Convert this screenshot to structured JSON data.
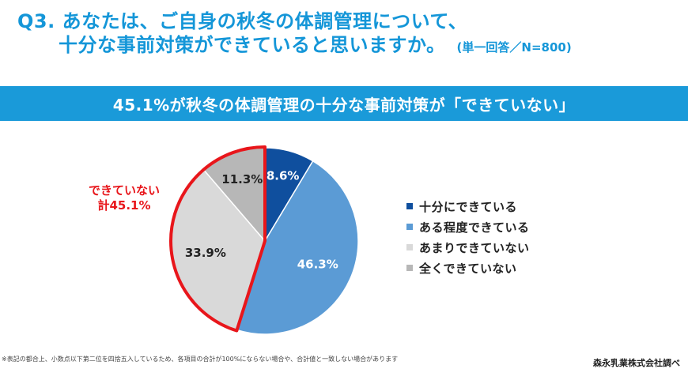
{
  "header": {
    "question_line1": "Q3. あなたは、ご自身の秋冬の体調管理について、",
    "question_line2": "十分な事前対策ができていると思いますか。",
    "sample_note": "(単一回答／N=800)"
  },
  "banner": {
    "text": "45.1%が秋冬の体調管理の十分な事前対策が「できていない」"
  },
  "callout": {
    "line1": "できていない",
    "line2": "計45.1%",
    "color": "#e8161b"
  },
  "footnote": "※表記の都合上、小数点以下第二位を四捨五入しているため、各項目の合計が100%にならない場合や、合計値と一致しない場合があります",
  "source": "森永乳業株式会社調べ",
  "chart_data": {
    "type": "pie",
    "title": "",
    "slices": [
      {
        "label": "十分にできている",
        "value": 8.6,
        "display": "8.6%",
        "color": "#0f4f9e",
        "text_color": "#ffffff"
      },
      {
        "label": "ある程度できている",
        "value": 46.3,
        "display": "46.3%",
        "color": "#5b9bd5",
        "text_color": "#ffffff"
      },
      {
        "label": "あまりできていない",
        "value": 33.9,
        "display": "33.9%",
        "color": "#d9d9d9",
        "text_color": "#222222"
      },
      {
        "label": "全くできていない",
        "value": 11.3,
        "display": "11.3%",
        "color": "#b7b7b7",
        "text_color": "#222222"
      }
    ],
    "start_angle": "12 o'clock",
    "direction": "clockwise",
    "highlighted_group": {
      "labels": [
        "あまりできていない",
        "全くできていない"
      ],
      "outline_color": "#e8161b"
    },
    "legend_position": "right"
  }
}
